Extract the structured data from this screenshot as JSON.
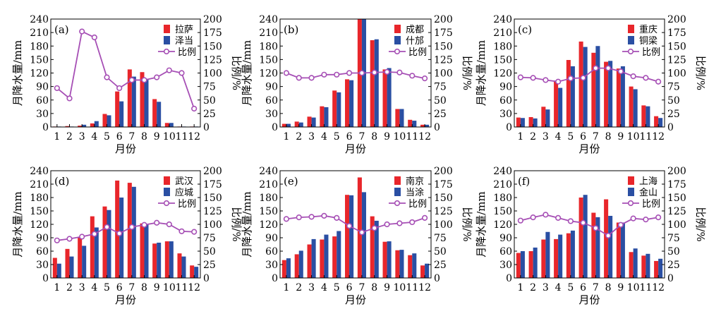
{
  "colors": {
    "primary": "#e8262b",
    "secondary": "#2a4fa3",
    "ratio": "#a64fb5"
  },
  "chart_data": [
    {
      "type": "bar",
      "panel": "(a)",
      "categories": [
        "1",
        "2",
        "3",
        "4",
        "5",
        "6",
        "7",
        "8",
        "9",
        "10",
        "11",
        "12"
      ],
      "series": [
        {
          "name": "拉萨",
          "values": [
            1,
            2,
            3,
            8,
            29,
            79,
            128,
            122,
            62,
            9,
            1,
            1
          ]
        },
        {
          "name": "泽当",
          "values": [
            1,
            1,
            5,
            13,
            26,
            57,
            112,
            107,
            56,
            9,
            1,
            1
          ]
        }
      ],
      "ratio": {
        "name": "比例",
        "values": [
          72,
          53,
          177,
          166,
          92,
          72,
          87,
          87,
          92,
          105,
          100,
          34
        ]
      },
      "xlabel": "月份",
      "ylabel": "月降水量/mm",
      "y2label": "比例/%",
      "ylim": [
        0,
        240
      ],
      "y2lim": [
        0,
        200
      ],
      "yticks": [
        "0",
        "30",
        "60",
        "90",
        "120",
        "150",
        "180",
        "210",
        "240"
      ],
      "y2ticks": [
        "0",
        "25",
        "50",
        "75",
        "100",
        "125",
        "150",
        "175",
        "200"
      ]
    },
    {
      "type": "bar",
      "panel": "(b)",
      "categories": [
        "1",
        "2",
        "3",
        "4",
        "5",
        "6",
        "7",
        "8",
        "9",
        "10",
        "11",
        "12"
      ],
      "series": [
        {
          "name": "成都",
          "values": [
            7,
            12,
            23,
            46,
            81,
            106,
            240,
            193,
            128,
            40,
            16,
            5
          ]
        },
        {
          "name": "什邡",
          "values": [
            7,
            10,
            21,
            44,
            77,
            104,
            240,
            195,
            131,
            40,
            14,
            5
          ]
        }
      ],
      "ratio": {
        "name": "比例",
        "values": [
          100,
          91,
          91,
          97,
          97,
          100,
          100,
          101,
          102,
          101,
          95,
          90
        ]
      },
      "xlabel": "月份",
      "ylabel": "月降水量/mm",
      "y2label": "比例/%",
      "ylim": [
        0,
        240
      ],
      "y2lim": [
        0,
        200
      ],
      "yticks": [
        "0",
        "30",
        "60",
        "90",
        "120",
        "150",
        "180",
        "210",
        "240"
      ],
      "y2ticks": [
        "0",
        "25",
        "50",
        "75",
        "100",
        "125",
        "150",
        "175",
        "200"
      ]
    },
    {
      "type": "bar",
      "panel": "(c)",
      "categories": [
        "1",
        "2",
        "3",
        "4",
        "5",
        "6",
        "7",
        "8",
        "9",
        "10",
        "11",
        "12"
      ],
      "series": [
        {
          "name": "重庆",
          "values": [
            21,
            22,
            45,
            103,
            149,
            190,
            165,
            145,
            130,
            90,
            48,
            24
          ]
        },
        {
          "name": "铜梁",
          "values": [
            20,
            19,
            39,
            87,
            135,
            178,
            180,
            147,
            135,
            84,
            46,
            20
          ]
        }
      ],
      "ratio": {
        "name": "比例",
        "values": [
          92,
          91,
          87,
          84,
          90,
          91,
          109,
          109,
          103,
          94,
          91,
          84
        ]
      },
      "xlabel": "月份",
      "ylabel": "月降水量/mm",
      "y2label": "比例/%",
      "ylim": [
        0,
        240
      ],
      "y2lim": [
        0,
        200
      ],
      "yticks": [
        "0",
        "30",
        "60",
        "90",
        "120",
        "150",
        "180",
        "210",
        "240"
      ],
      "y2ticks": [
        "0",
        "25",
        "50",
        "75",
        "100",
        "125",
        "150",
        "175",
        "200"
      ]
    },
    {
      "type": "bar",
      "panel": "(d)",
      "categories": [
        "1",
        "2",
        "3",
        "4",
        "5",
        "6",
        "7",
        "8",
        "9",
        "10",
        "11",
        "12"
      ],
      "series": [
        {
          "name": "武汉",
          "values": [
            45,
            65,
            92,
            138,
            160,
            218,
            213,
            122,
            77,
            82,
            55,
            28
          ]
        },
        {
          "name": "应城",
          "values": [
            32,
            48,
            72,
            113,
            152,
            180,
            204,
            120,
            79,
            82,
            48,
            25
          ]
        }
      ],
      "ratio": {
        "name": "比例",
        "values": [
          70,
          73,
          77,
          82,
          95,
          83,
          95,
          99,
          103,
          100,
          87,
          86
        ]
      },
      "xlabel": "月份",
      "ylabel": "月降水量/mm",
      "y2label": "比例/%",
      "ylim": [
        0,
        240
      ],
      "y2lim": [
        0,
        200
      ],
      "yticks": [
        "0",
        "30",
        "60",
        "90",
        "120",
        "150",
        "180",
        "210",
        "240"
      ],
      "y2ticks": [
        "0",
        "25",
        "50",
        "75",
        "100",
        "125",
        "150",
        "175",
        "200"
      ]
    },
    {
      "type": "bar",
      "panel": "(e)",
      "categories": [
        "1",
        "2",
        "3",
        "4",
        "5",
        "6",
        "7",
        "8",
        "9",
        "10",
        "11",
        "12"
      ],
      "series": [
        {
          "name": "南京",
          "values": [
            40,
            53,
            75,
            86,
            93,
            186,
            225,
            138,
            81,
            62,
            51,
            28
          ]
        },
        {
          "name": "当涂",
          "values": [
            44,
            61,
            87,
            97,
            105,
            185,
            192,
            128,
            82,
            63,
            55,
            32
          ]
        }
      ],
      "ratio": {
        "name": "比例",
        "values": [
          110,
          113,
          114,
          116,
          112,
          97,
          85,
          93,
          100,
          102,
          104,
          112
        ]
      },
      "xlabel": "月份",
      "ylabel": "月降水量/mm",
      "y2label": "比例/%",
      "ylim": [
        0,
        240
      ],
      "y2lim": [
        0,
        200
      ],
      "yticks": [
        "0",
        "30",
        "60",
        "90",
        "120",
        "150",
        "180",
        "210",
        "240"
      ],
      "y2ticks": [
        "0",
        "25",
        "50",
        "75",
        "100",
        "125",
        "150",
        "175",
        "200"
      ]
    },
    {
      "type": "bar",
      "panel": "(f)",
      "categories": [
        "1",
        "2",
        "3",
        "4",
        "5",
        "6",
        "7",
        "8",
        "9",
        "10",
        "11",
        "12"
      ],
      "series": [
        {
          "name": "上海",
          "values": [
            56,
            60,
            86,
            87,
            100,
            180,
            146,
            176,
            124,
            58,
            50,
            38
          ]
        },
        {
          "name": "金山",
          "values": [
            60,
            68,
            103,
            97,
            106,
            186,
            136,
            139,
            124,
            66,
            54,
            43
          ]
        }
      ],
      "ratio": {
        "name": "比例",
        "values": [
          107,
          113,
          118,
          112,
          106,
          103,
          93,
          79,
          99,
          111,
          109,
          113
        ]
      },
      "xlabel": "月份",
      "ylabel": "月降水量/mm",
      "y2label": "比例/%",
      "ylim": [
        0,
        240
      ],
      "y2lim": [
        0,
        200
      ],
      "yticks": [
        "0",
        "30",
        "60",
        "90",
        "120",
        "150",
        "180",
        "210",
        "240"
      ],
      "y2ticks": [
        "0",
        "25",
        "50",
        "75",
        "100",
        "125",
        "150",
        "175",
        "200"
      ]
    }
  ]
}
